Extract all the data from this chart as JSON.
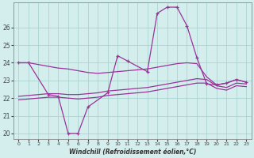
{
  "xlabel": "Windchill (Refroidissement éolien,°C)",
  "x": [
    0,
    1,
    2,
    3,
    4,
    5,
    6,
    7,
    8,
    9,
    10,
    11,
    12,
    13,
    14,
    15,
    16,
    17,
    18,
    19,
    20,
    21,
    22,
    23
  ],
  "line_spiky_x": [
    0,
    1,
    3,
    4,
    5,
    6,
    7,
    9,
    10,
    11,
    13,
    14,
    15,
    16,
    17,
    18,
    19,
    20,
    21,
    22,
    23
  ],
  "line_spiky_y": [
    24.0,
    24.0,
    22.2,
    22.1,
    20.0,
    20.0,
    21.5,
    22.3,
    24.4,
    24.1,
    23.5,
    26.8,
    27.15,
    27.15,
    26.1,
    24.3,
    22.8,
    22.75,
    22.85,
    23.05,
    22.9
  ],
  "line_upper": [
    24.0,
    24.0,
    23.9,
    23.8,
    23.7,
    23.65,
    23.55,
    23.45,
    23.4,
    23.45,
    23.5,
    23.55,
    23.6,
    23.65,
    23.75,
    23.85,
    23.95,
    24.0,
    23.95,
    23.2,
    22.75,
    22.85,
    23.05,
    22.9
  ],
  "line_mid": [
    22.1,
    22.15,
    22.2,
    22.25,
    22.25,
    22.2,
    22.2,
    22.25,
    22.3,
    22.4,
    22.45,
    22.5,
    22.55,
    22.6,
    22.7,
    22.8,
    22.9,
    23.0,
    23.1,
    23.05,
    22.7,
    22.6,
    22.85,
    22.8
  ],
  "line_lower": [
    21.9,
    21.95,
    22.0,
    22.05,
    22.05,
    22.0,
    21.95,
    22.0,
    22.05,
    22.15,
    22.2,
    22.25,
    22.3,
    22.35,
    22.45,
    22.55,
    22.65,
    22.75,
    22.85,
    22.85,
    22.55,
    22.45,
    22.7,
    22.65
  ],
  "series_color": "#993399",
  "bg_color": "#d4eeed",
  "grid_color": "#aad4d0",
  "yticks": [
    20,
    21,
    22,
    23,
    24,
    25,
    26
  ],
  "ylim_min": 19.7,
  "ylim_max": 27.4,
  "xticks": [
    0,
    1,
    2,
    3,
    4,
    5,
    6,
    7,
    8,
    9,
    10,
    11,
    12,
    13,
    14,
    15,
    16,
    17,
    18,
    19,
    20,
    21,
    22,
    23
  ]
}
